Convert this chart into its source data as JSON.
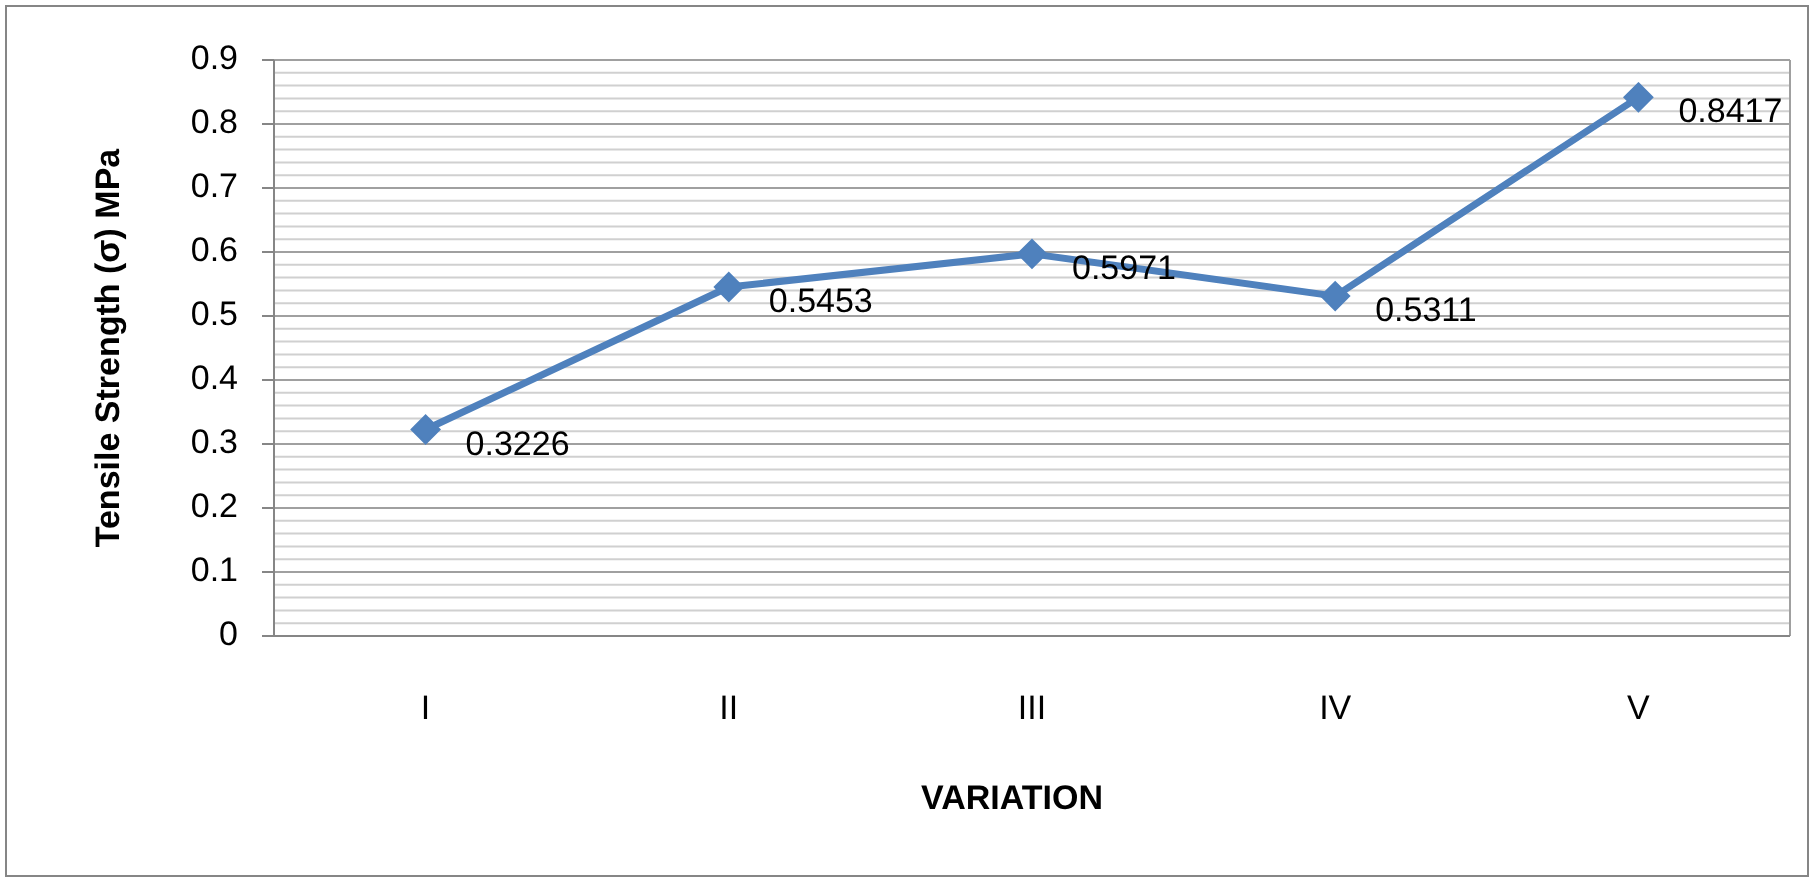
{
  "chart_data": {
    "type": "line",
    "xlabel": "VARIATION",
    "ylabel": "Tensile Strength (σ) MPa",
    "categories": [
      "I",
      "II",
      "III",
      "IV",
      "V"
    ],
    "series": [
      {
        "color": "#4f81bd",
        "values": [
          0.3226,
          0.5453,
          0.5971,
          0.5311,
          0.8417
        ]
      }
    ],
    "ylim": [
      0,
      0.9
    ],
    "yticks": [
      0,
      {
        "value": 0.02,
        "label": null
      },
      {
        "value": 0.04,
        "label": null
      },
      {
        "value": 0.06,
        "label": null
      },
      {
        "value": 0.08,
        "label": null
      },
      0.1,
      {
        "value": 0.12,
        "label": null
      },
      {
        "value": 0.14,
        "label": null
      },
      {
        "value": 0.16,
        "label": null
      },
      {
        "value": 0.18,
        "label": null
      },
      0.2,
      {
        "value": 0.22,
        "label": null
      },
      {
        "value": 0.24,
        "label": null
      },
      {
        "value": 0.26,
        "label": null
      },
      {
        "value": 0.28,
        "label": null
      },
      0.3,
      {
        "value": 0.32,
        "label": null
      },
      {
        "value": 0.34,
        "label": null
      },
      {
        "value": 0.36,
        "label": null
      },
      {
        "value": 0.38,
        "label": null
      },
      0.4,
      {
        "value": 0.42,
        "label": null
      },
      {
        "value": 0.44,
        "label": null
      },
      {
        "value": 0.46,
        "label": null
      },
      {
        "value": 0.48,
        "label": null
      },
      0.5,
      {
        "value": 0.52,
        "label": null
      },
      {
        "value": 0.54,
        "label": null
      },
      {
        "value": 0.56,
        "label": null
      },
      {
        "value": 0.58,
        "label": null
      },
      0.6,
      {
        "value": 0.62,
        "label": null
      },
      {
        "value": 0.64,
        "label": null
      },
      {
        "value": 0.66,
        "label": null
      },
      {
        "value": 0.68,
        "label": null
      },
      0.7,
      {
        "value": 0.72,
        "label": null
      },
      {
        "value": 0.74,
        "label": null
      },
      {
        "value": 0.76,
        "label": null
      },
      {
        "value": 0.78,
        "label": null
      },
      0.8,
      {
        "value": 0.82,
        "label": null
      },
      {
        "value": 0.84,
        "label": null
      },
      {
        "value": 0.86,
        "label": null
      },
      {
        "value": 0.88,
        "label": null
      },
      0.9
    ],
    "grid": "y",
    "marker": "diamond",
    "line_style": "solid",
    "data_labels": true
  }
}
